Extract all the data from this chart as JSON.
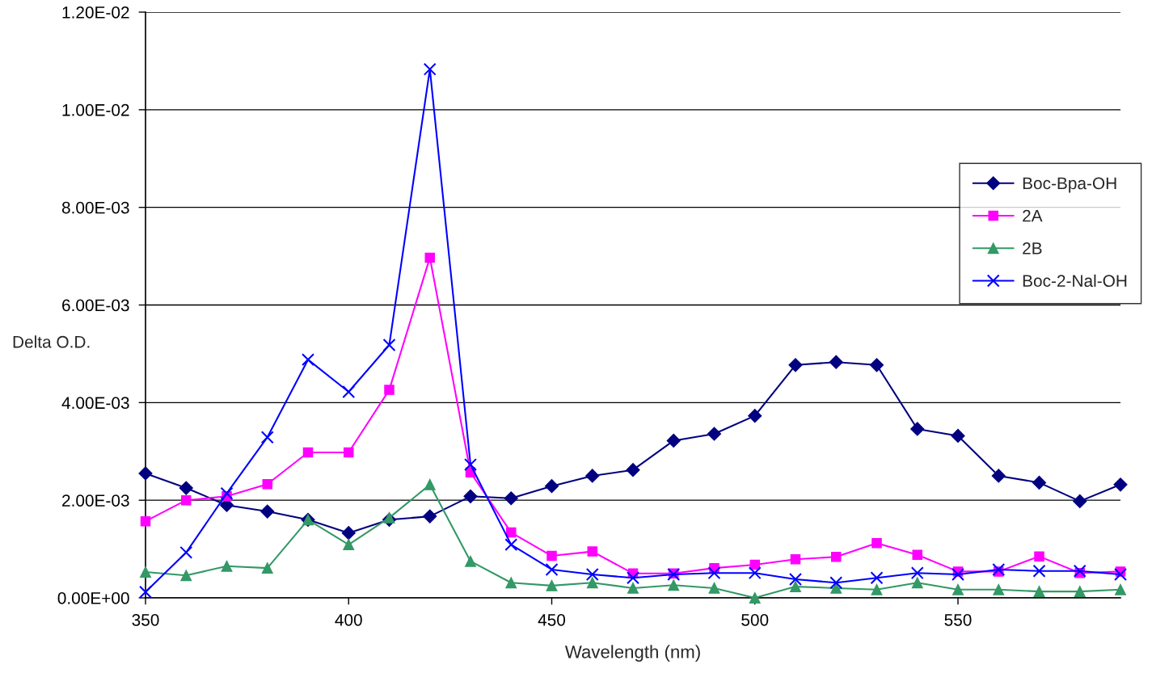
{
  "chart_data": {
    "type": "line",
    "xlabel": "Wavelength (nm)",
    "ylabel": "Delta O.D.",
    "x": [
      350,
      360,
      370,
      380,
      390,
      400,
      410,
      420,
      430,
      440,
      450,
      460,
      470,
      480,
      490,
      500,
      510,
      520,
      530,
      540,
      550,
      560,
      570,
      580,
      590
    ],
    "series": [
      {
        "name": "Boc-Bpa-OH",
        "color": "#000080",
        "marker": "diamond",
        "values": [
          0.00255,
          0.00225,
          0.0019,
          0.00177,
          0.0016,
          0.00133,
          0.0016,
          0.00167,
          0.00208,
          0.00204,
          0.00229,
          0.0025,
          0.00262,
          0.00322,
          0.00336,
          0.00373,
          0.00477,
          0.00483,
          0.00477,
          0.00346,
          0.00332,
          0.0025,
          0.00236,
          0.00198,
          0.00232
        ]
      },
      {
        "name": "2A",
        "color": "#ff00ff",
        "marker": "square",
        "values": [
          0.00157,
          0.002,
          0.00208,
          0.00233,
          0.00298,
          0.00298,
          0.00426,
          0.00697,
          0.00257,
          0.00134,
          0.00086,
          0.00095,
          0.0005,
          0.0005,
          0.00061,
          0.00068,
          0.00079,
          0.00084,
          0.00112,
          0.00088,
          0.00054,
          0.00054,
          0.00085,
          0.00051,
          0.00054
        ]
      },
      {
        "name": "2B",
        "color": "#339966",
        "marker": "triangle",
        "values": [
          0.00053,
          0.00046,
          0.00065,
          0.00061,
          0.0016,
          0.00109,
          0.00164,
          0.00232,
          0.00075,
          0.00031,
          0.00025,
          0.00031,
          0.0002,
          0.00026,
          0.0002,
          0.0,
          0.00023,
          0.0002,
          0.00017,
          0.00031,
          0.00017,
          0.00017,
          0.00013,
          0.00013,
          0.00017
        ]
      },
      {
        "name": "Boc-2-Nal-OH",
        "color": "#0000ff",
        "marker": "cross",
        "values": [
          0.00012,
          0.00093,
          0.00214,
          0.00329,
          0.00488,
          0.00422,
          0.00518,
          0.01083,
          0.00273,
          0.00109,
          0.00058,
          0.00048,
          0.00041,
          0.00048,
          0.00051,
          0.00051,
          0.00038,
          0.00031,
          0.00041,
          0.00051,
          0.00048,
          0.00058,
          0.00055,
          0.00055,
          0.00048
        ]
      }
    ],
    "xlim": [
      350,
      590
    ],
    "xticks": [
      350,
      400,
      450,
      500,
      550
    ],
    "ylim": [
      0,
      0.012
    ],
    "yticks": [
      {
        "value": 0,
        "label": "0.00E+00"
      },
      {
        "value": 0.002,
        "label": "2.00E-03"
      },
      {
        "value": 0.004,
        "label": "4.00E-03"
      },
      {
        "value": 0.006,
        "label": "6.00E-03"
      },
      {
        "value": 0.008,
        "label": "8.00E-03"
      },
      {
        "value": 0.01,
        "label": "1.00E-02"
      },
      {
        "value": 0.012,
        "label": "1.20E-02"
      }
    ],
    "grid": "y",
    "legend": "right"
  }
}
